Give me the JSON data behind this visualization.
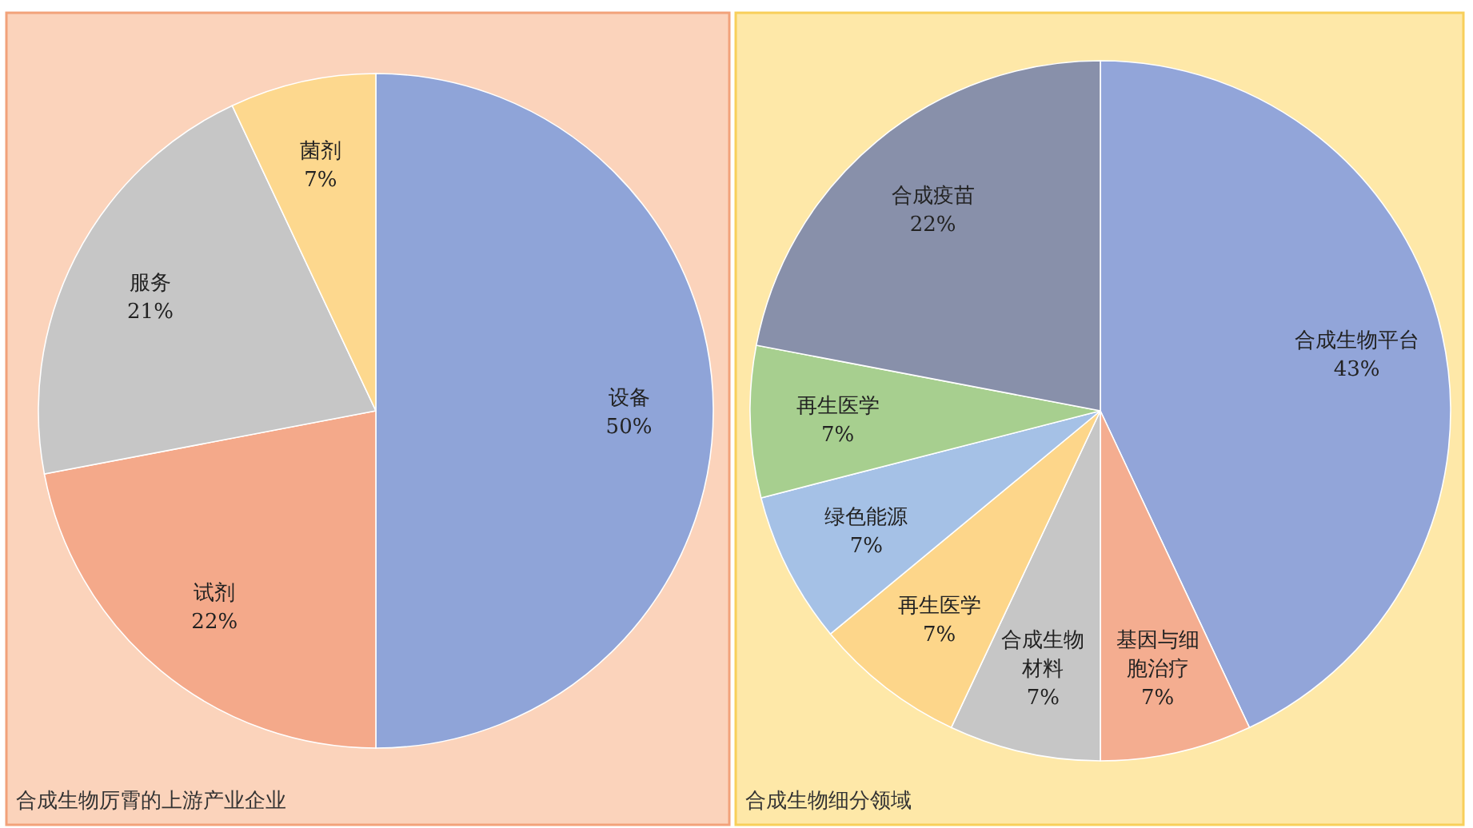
{
  "chart_data": [
    {
      "type": "pie",
      "title": "合成生物厉霄的上游产业企业",
      "categories": [
        "设备",
        "试剂",
        "服务",
        "菌剂"
      ],
      "values": [
        50,
        22,
        21,
        7
      ],
      "value_labels": [
        "50%",
        "22%",
        "21%",
        "7%"
      ],
      "colors": [
        "#8fa4d8",
        "#f4a98a",
        "#c6c6c6",
        "#fdd88e"
      ]
    },
    {
      "type": "pie",
      "title": "合成生物细分领域",
      "categories": [
        "合成生物平台",
        "基因与细胞治疗",
        "合成生物材料",
        "再生医学",
        "绿色能源",
        "再生医学",
        "合成疫苗"
      ],
      "values": [
        43,
        7,
        7,
        7,
        7,
        7,
        22
      ],
      "value_labels": [
        "43%",
        "7%",
        "7%",
        "7%",
        "7%",
        "7%",
        "22%"
      ],
      "colors": [
        "#92a5d9",
        "#f4ad90",
        "#c6c6c6",
        "#fdd68a",
        "#a5c1e6",
        "#a7cf8f",
        "#8890aa"
      ]
    }
  ]
}
